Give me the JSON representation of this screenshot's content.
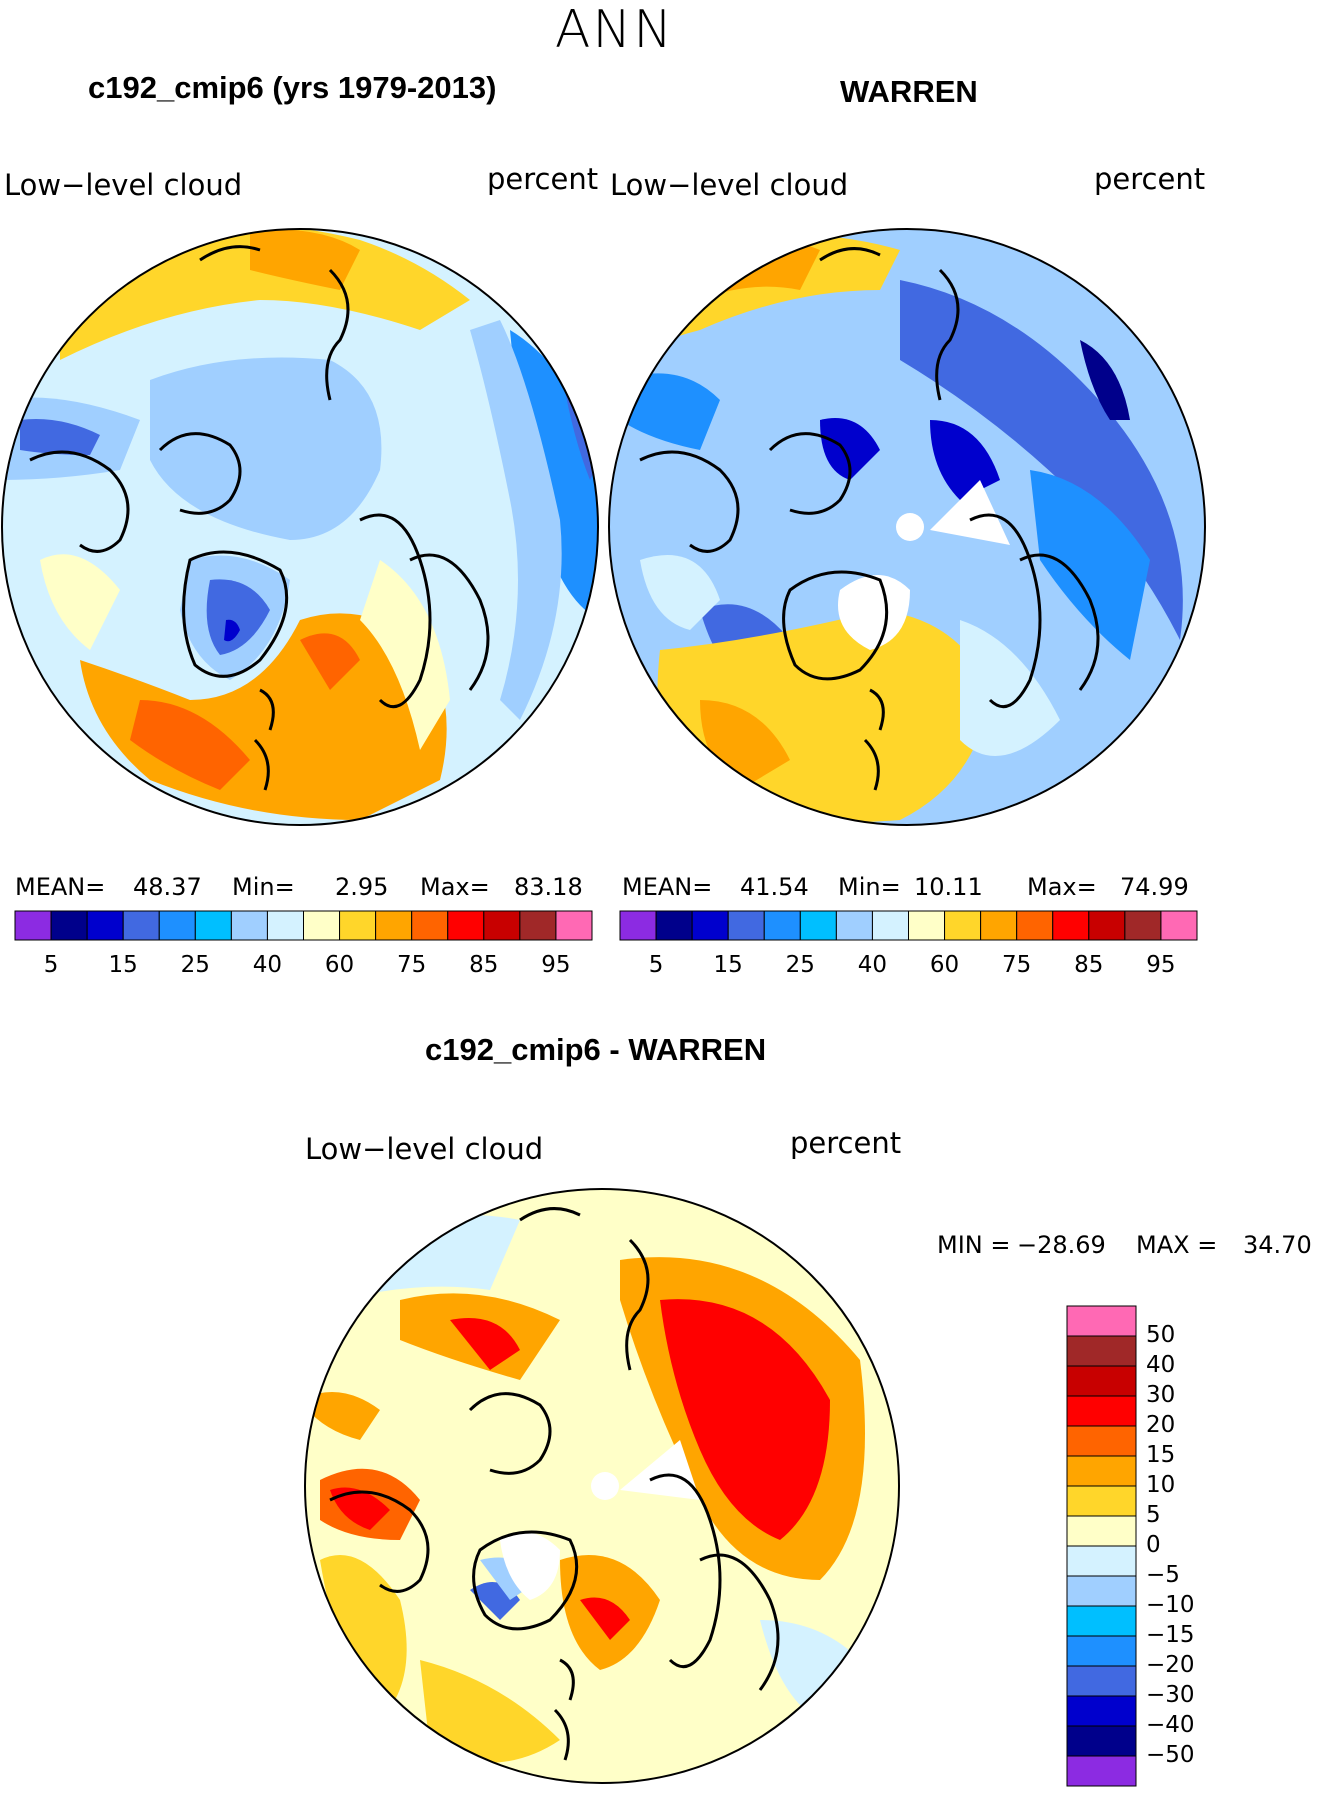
{
  "figure": {
    "season": "ANN",
    "panels": [
      {
        "title": "c192_cmip6 (yrs 1979-2013)",
        "label_left": "Low−level cloud",
        "label_right": "percent",
        "stats": {
          "mean_label": "MEAN=",
          "mean": "48.37",
          "min_label": "Min=",
          "min": "2.95",
          "max_label": "Max=",
          "max": "83.18"
        }
      },
      {
        "title": "WARREN",
        "label_left": "Low−level cloud",
        "label_right": "percent",
        "stats": {
          "mean_label": "MEAN=",
          "mean": "41.54",
          "min_label": "Min=",
          "min": "10.11",
          "max_label": "Max=",
          "max": "74.99"
        }
      },
      {
        "title": "c192_cmip6 - WARREN",
        "label_left": "Low−level cloud",
        "label_right": "percent",
        "stats": {
          "min_label": "MIN =",
          "min": "−28.69",
          "max_label": "MAX =",
          "max": "34.70"
        }
      }
    ]
  },
  "legend_top": {
    "colors": [
      "#8c2be2",
      "#00008b",
      "#0000cd",
      "#4169e1",
      "#1e90ff",
      "#00bfff",
      "#a0cfff",
      "#d4f2ff",
      "#ffffc8",
      "#ffd62a",
      "#ffa500",
      "#ff6400",
      "#ff0000",
      "#c80000",
      "#a02828",
      "#ff69b4"
    ],
    "ticks": [
      "5",
      "15",
      "25",
      "40",
      "60",
      "75",
      "85",
      "95"
    ]
  },
  "legend_diff": {
    "colors": [
      "#ff69b4",
      "#a02828",
      "#c80000",
      "#ff0000",
      "#ff6400",
      "#ffa500",
      "#ffd62a",
      "#ffffc8",
      "#d4f2ff",
      "#a0cfff",
      "#00bfff",
      "#1e90ff",
      "#4169e1",
      "#0000cd",
      "#00008b",
      "#8c2be2"
    ],
    "ticks": [
      "50",
      "40",
      "30",
      "20",
      "15",
      "10",
      "5",
      "0",
      "−5",
      "−10",
      "−15",
      "−20",
      "−30",
      "−40",
      "−50"
    ]
  },
  "palette": {
    "ocean_blue": "#a0cfff",
    "pale_blue": "#d4f2ff",
    "pale_yellow": "#ffffc8",
    "yellow": "#ffd62a",
    "orange": "#ffa500",
    "dark_orange": "#ff6400",
    "red": "#ff0000",
    "blue": "#1e90ff",
    "deep_blue": "#4169e1",
    "navy": "#0000cd",
    "cyan": "#00bfff"
  }
}
